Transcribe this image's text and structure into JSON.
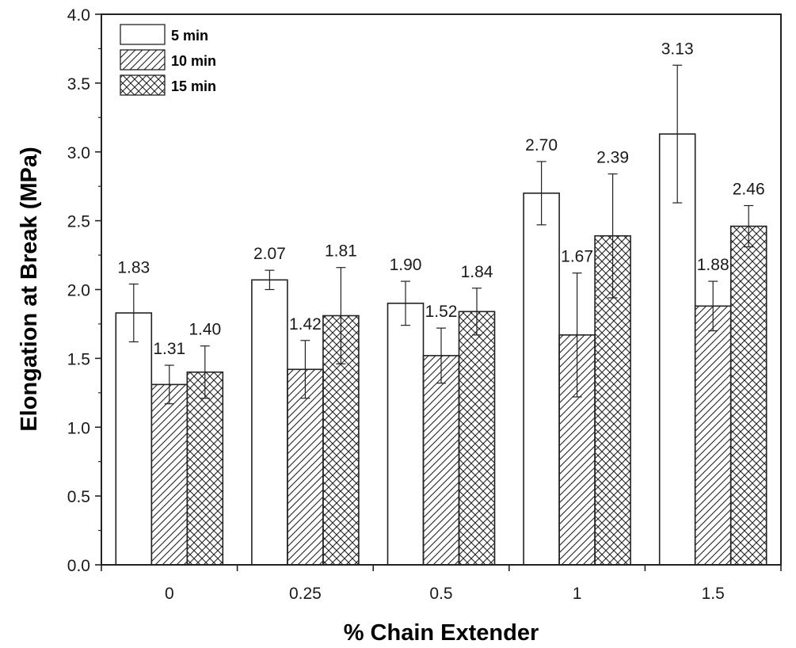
{
  "chart_data": {
    "type": "bar",
    "xlabel": "% Chain Extender",
    "ylabel": "Elongation at Break (MPa)",
    "ylim": [
      0,
      4.0
    ],
    "yticks": [
      "0.0",
      "0.5",
      "1.0",
      "1.5",
      "2.0",
      "2.5",
      "3.0",
      "3.5",
      "4.0"
    ],
    "categories": [
      "0",
      "0.25",
      "0.5",
      "1",
      "1.5"
    ],
    "legend_position": "top-left",
    "series": [
      {
        "name": "5 min",
        "pattern": "none",
        "values": [
          1.83,
          2.07,
          1.9,
          2.7,
          3.13
        ],
        "labels": [
          "1.83",
          "2.07",
          "1.90",
          "2.70",
          "3.13"
        ],
        "errors": [
          0.21,
          0.07,
          0.16,
          0.23,
          0.5
        ]
      },
      {
        "name": "10 min",
        "pattern": "diagonal",
        "values": [
          1.31,
          1.42,
          1.52,
          1.67,
          1.88
        ],
        "labels": [
          "1.31",
          "1.42",
          "1.52",
          "1.67",
          "1.88"
        ],
        "errors": [
          0.14,
          0.21,
          0.2,
          0.45,
          0.18
        ]
      },
      {
        "name": "15 min",
        "pattern": "crosshatch",
        "values": [
          1.4,
          1.81,
          1.84,
          2.39,
          2.46
        ],
        "labels": [
          "1.40",
          "1.81",
          "1.84",
          "2.39",
          "2.46"
        ],
        "errors": [
          0.19,
          0.35,
          0.17,
          0.45,
          0.15
        ]
      }
    ]
  }
}
